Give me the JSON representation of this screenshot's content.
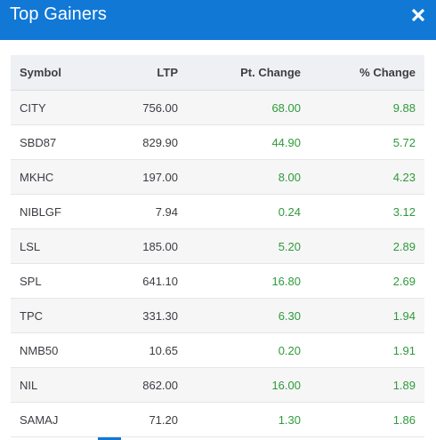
{
  "header": {
    "title": "Top Gainers",
    "close_icon": "close-icon",
    "bg_color": "#1178d6"
  },
  "table": {
    "columns": [
      "Symbol",
      "LTP",
      "Pt. Change",
      "% Change"
    ],
    "rows": [
      {
        "symbol": "CITY",
        "ltp": "756.00",
        "pt_change": "68.00",
        "pct_change": "9.88"
      },
      {
        "symbol": "SBD87",
        "ltp": "829.90",
        "pt_change": "44.90",
        "pct_change": "5.72"
      },
      {
        "symbol": "MKHC",
        "ltp": "197.00",
        "pt_change": "8.00",
        "pct_change": "4.23"
      },
      {
        "symbol": "NIBLGF",
        "ltp": "7.94",
        "pt_change": "0.24",
        "pct_change": "3.12"
      },
      {
        "symbol": "LSL",
        "ltp": "185.00",
        "pt_change": "5.20",
        "pct_change": "2.89"
      },
      {
        "symbol": "SPL",
        "ltp": "641.10",
        "pt_change": "16.80",
        "pct_change": "2.69"
      },
      {
        "symbol": "TPC",
        "ltp": "331.30",
        "pt_change": "6.30",
        "pct_change": "1.94"
      },
      {
        "symbol": "NMB50",
        "ltp": "10.65",
        "pt_change": "0.20",
        "pct_change": "1.91"
      },
      {
        "symbol": "NIL",
        "ltp": "862.00",
        "pt_change": "16.00",
        "pct_change": "1.89"
      },
      {
        "symbol": "SAMAJ",
        "ltp": "71.20",
        "pt_change": "1.30",
        "pct_change": "1.86"
      }
    ],
    "positive_color": "#2e9a3a"
  }
}
